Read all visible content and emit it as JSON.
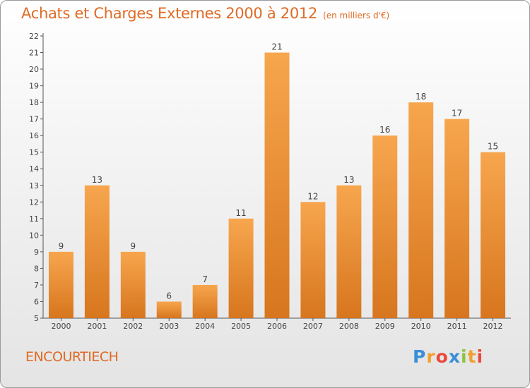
{
  "header": {
    "title": "Achats et Charges Externes 2000 à 2012",
    "subtitle": "(en milliers d'€)"
  },
  "footer": {
    "commune": "ENCOURTIECH",
    "logo_letters": [
      "P",
      "r",
      "o",
      "x",
      "i",
      "t",
      "i"
    ],
    "logo_colors": [
      "#3a8fd6",
      "#f0a030",
      "#e84a3a",
      "#3a8fd6",
      "#8cc63f",
      "#f0a030",
      "#e84a3a"
    ]
  },
  "colors": {
    "bar_top": "#f7a64e",
    "bar_bottom": "#d7761e",
    "accent": "#e06a24",
    "axis": "#555555"
  },
  "chart_data": {
    "type": "bar",
    "categories": [
      "2000",
      "2001",
      "2002",
      "2003",
      "2004",
      "2005",
      "2006",
      "2007",
      "2008",
      "2009",
      "2010",
      "2011",
      "2012"
    ],
    "values": [
      9,
      13,
      9,
      6,
      7,
      11,
      21,
      12,
      13,
      16,
      18,
      17,
      15
    ],
    "ylim": [
      5,
      22
    ],
    "yticks": [
      5,
      6,
      7,
      8,
      9,
      10,
      11,
      12,
      13,
      14,
      15,
      16,
      17,
      18,
      19,
      20,
      21,
      22
    ],
    "grid": false
  }
}
